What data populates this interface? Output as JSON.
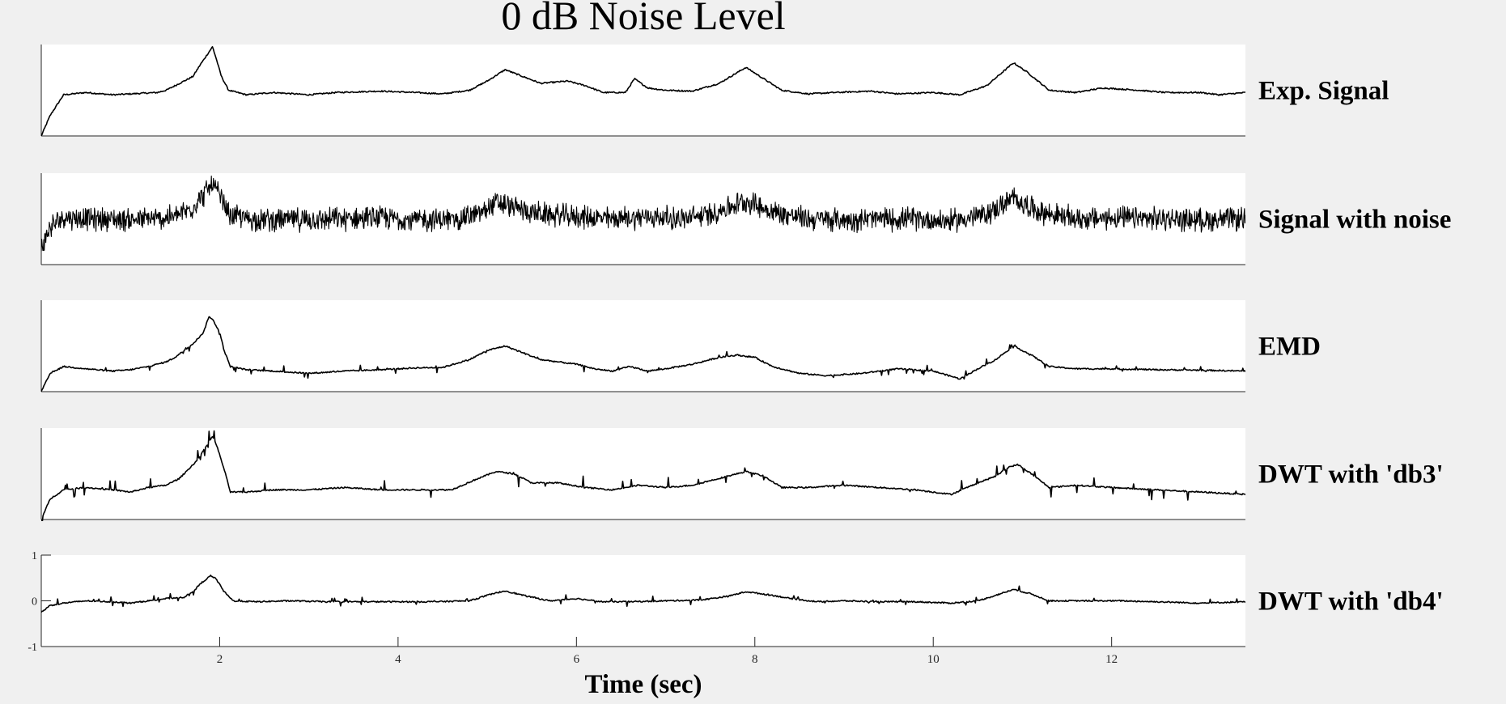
{
  "chart_data": {
    "type": "line",
    "title": "0 dB Noise Level",
    "xlabel": "Time (sec)",
    "xlim": [
      0,
      13.5
    ],
    "x_ticks": [
      2,
      4,
      6,
      8,
      10,
      12
    ],
    "x_tick_labels": [
      "2",
      "4",
      "6",
      "8",
      "10",
      "12"
    ],
    "colors": {
      "line": "#000000",
      "axes_bg": "#ffffff",
      "figure_bg": "#f0f0f0"
    },
    "panels": [
      {
        "label": "Exp. Signal",
        "ylim": [
          -1,
          1
        ],
        "noise": 0,
        "spikes": 0,
        "points": [
          [
            0,
            -1
          ],
          [
            0.1,
            -0.55
          ],
          [
            0.25,
            -0.1
          ],
          [
            0.5,
            -0.05
          ],
          [
            0.8,
            -0.1
          ],
          [
            1.0,
            -0.08
          ],
          [
            1.3,
            -0.05
          ],
          [
            1.4,
            0.0
          ],
          [
            1.55,
            0.15
          ],
          [
            1.7,
            0.3
          ],
          [
            1.78,
            0.55
          ],
          [
            1.85,
            0.75
          ],
          [
            1.92,
            0.95
          ],
          [
            1.96,
            0.7
          ],
          [
            2.02,
            0.3
          ],
          [
            2.1,
            0.0
          ],
          [
            2.3,
            -0.1
          ],
          [
            2.6,
            -0.05
          ],
          [
            3.0,
            -0.1
          ],
          [
            3.3,
            -0.05
          ],
          [
            3.8,
            -0.02
          ],
          [
            4.2,
            -0.05
          ],
          [
            4.5,
            -0.08
          ],
          [
            4.8,
            0.0
          ],
          [
            5.0,
            0.2
          ],
          [
            5.2,
            0.45
          ],
          [
            5.4,
            0.3
          ],
          [
            5.6,
            0.15
          ],
          [
            5.9,
            0.2
          ],
          [
            6.1,
            0.1
          ],
          [
            6.3,
            -0.05
          ],
          [
            6.55,
            -0.05
          ],
          [
            6.65,
            0.25
          ],
          [
            6.8,
            0.05
          ],
          [
            7.0,
            0.0
          ],
          [
            7.3,
            -0.02
          ],
          [
            7.6,
            0.15
          ],
          [
            7.9,
            0.5
          ],
          [
            8.1,
            0.25
          ],
          [
            8.3,
            0.0
          ],
          [
            8.6,
            -0.08
          ],
          [
            8.9,
            -0.05
          ],
          [
            9.3,
            -0.02
          ],
          [
            9.6,
            -0.08
          ],
          [
            10.0,
            -0.05
          ],
          [
            10.3,
            -0.1
          ],
          [
            10.6,
            0.1
          ],
          [
            10.9,
            0.6
          ],
          [
            11.05,
            0.4
          ],
          [
            11.3,
            0.0
          ],
          [
            11.6,
            -0.05
          ],
          [
            11.9,
            0.05
          ],
          [
            12.3,
            0.0
          ],
          [
            12.6,
            -0.05
          ],
          [
            13.0,
            -0.05
          ],
          [
            13.2,
            -0.1
          ],
          [
            13.5,
            -0.05
          ]
        ]
      },
      {
        "label": "Signal with noise",
        "ylim": [
          -1,
          1
        ],
        "noise": 0.3,
        "spikes": 0,
        "points": [
          [
            0,
            -0.6
          ],
          [
            0.1,
            -0.2
          ],
          [
            0.25,
            0.05
          ],
          [
            0.5,
            0.0
          ],
          [
            0.8,
            0.0
          ],
          [
            1.0,
            -0.02
          ],
          [
            1.3,
            0.0
          ],
          [
            1.5,
            0.05
          ],
          [
            1.7,
            0.25
          ],
          [
            1.8,
            0.5
          ],
          [
            1.92,
            0.75
          ],
          [
            2.0,
            0.5
          ],
          [
            2.1,
            0.1
          ],
          [
            2.3,
            0.0
          ],
          [
            2.6,
            -0.02
          ],
          [
            3.0,
            -0.02
          ],
          [
            3.4,
            0.0
          ],
          [
            3.8,
            0.02
          ],
          [
            4.2,
            -0.02
          ],
          [
            4.6,
            -0.02
          ],
          [
            4.9,
            0.1
          ],
          [
            5.1,
            0.35
          ],
          [
            5.3,
            0.25
          ],
          [
            5.6,
            0.1
          ],
          [
            6.0,
            0.05
          ],
          [
            6.4,
            0.0
          ],
          [
            6.8,
            0.05
          ],
          [
            7.2,
            0.0
          ],
          [
            7.5,
            0.1
          ],
          [
            7.9,
            0.4
          ],
          [
            8.2,
            0.15
          ],
          [
            8.6,
            0.0
          ],
          [
            9.0,
            -0.02
          ],
          [
            9.4,
            0.0
          ],
          [
            9.8,
            0.0
          ],
          [
            10.2,
            -0.05
          ],
          [
            10.6,
            0.1
          ],
          [
            10.9,
            0.45
          ],
          [
            11.2,
            0.15
          ],
          [
            11.6,
            0.0
          ],
          [
            12.0,
            0.02
          ],
          [
            12.5,
            0.0
          ],
          [
            13.0,
            -0.02
          ],
          [
            13.5,
            0.0
          ]
        ]
      },
      {
        "label": "EMD",
        "ylim": [
          -1,
          1
        ],
        "noise": 0,
        "spikes": 0.06,
        "points": [
          [
            0,
            -1
          ],
          [
            0.1,
            -0.6
          ],
          [
            0.25,
            -0.45
          ],
          [
            0.5,
            -0.5
          ],
          [
            0.8,
            -0.55
          ],
          [
            1.0,
            -0.52
          ],
          [
            1.2,
            -0.45
          ],
          [
            1.4,
            -0.35
          ],
          [
            1.5,
            -0.25
          ],
          [
            1.6,
            -0.1
          ],
          [
            1.7,
            0.05
          ],
          [
            1.75,
            0.15
          ],
          [
            1.82,
            0.3
          ],
          [
            1.88,
            0.65
          ],
          [
            1.93,
            0.55
          ],
          [
            2.0,
            0.3
          ],
          [
            2.05,
            -0.1
          ],
          [
            2.12,
            -0.45
          ],
          [
            2.3,
            -0.52
          ],
          [
            2.6,
            -0.55
          ],
          [
            3.0,
            -0.6
          ],
          [
            3.4,
            -0.55
          ],
          [
            3.8,
            -0.52
          ],
          [
            4.2,
            -0.48
          ],
          [
            4.5,
            -0.47
          ],
          [
            4.8,
            -0.3
          ],
          [
            5.0,
            -0.1
          ],
          [
            5.2,
            0.0
          ],
          [
            5.4,
            -0.15
          ],
          [
            5.6,
            -0.3
          ],
          [
            5.8,
            -0.35
          ],
          [
            6.0,
            -0.4
          ],
          [
            6.2,
            -0.5
          ],
          [
            6.4,
            -0.55
          ],
          [
            6.6,
            -0.45
          ],
          [
            6.8,
            -0.55
          ],
          [
            7.0,
            -0.5
          ],
          [
            7.3,
            -0.4
          ],
          [
            7.6,
            -0.25
          ],
          [
            7.8,
            -0.2
          ],
          [
            8.0,
            -0.25
          ],
          [
            8.2,
            -0.45
          ],
          [
            8.5,
            -0.6
          ],
          [
            8.8,
            -0.65
          ],
          [
            9.2,
            -0.6
          ],
          [
            9.6,
            -0.5
          ],
          [
            10.0,
            -0.55
          ],
          [
            10.3,
            -0.72
          ],
          [
            10.5,
            -0.5
          ],
          [
            10.7,
            -0.3
          ],
          [
            10.9,
            0.0
          ],
          [
            11.1,
            -0.2
          ],
          [
            11.3,
            -0.45
          ],
          [
            11.6,
            -0.5
          ],
          [
            12.0,
            -0.5
          ],
          [
            12.5,
            -0.52
          ],
          [
            13.0,
            -0.53
          ],
          [
            13.5,
            -0.55
          ]
        ]
      },
      {
        "label": "DWT with 'db3'",
        "ylim": [
          -1,
          1
        ],
        "noise": 0,
        "spikes": 0.12,
        "points": [
          [
            0,
            -1
          ],
          [
            0.1,
            -0.55
          ],
          [
            0.25,
            -0.35
          ],
          [
            0.5,
            -0.3
          ],
          [
            0.8,
            -0.35
          ],
          [
            1.0,
            -0.4
          ],
          [
            1.2,
            -0.3
          ],
          [
            1.4,
            -0.25
          ],
          [
            1.55,
            -0.1
          ],
          [
            1.65,
            0.1
          ],
          [
            1.75,
            0.3
          ],
          [
            1.85,
            0.6
          ],
          [
            1.92,
            0.82
          ],
          [
            1.97,
            0.6
          ],
          [
            2.05,
            0.1
          ],
          [
            2.12,
            -0.4
          ],
          [
            2.3,
            -0.4
          ],
          [
            2.6,
            -0.35
          ],
          [
            3.0,
            -0.35
          ],
          [
            3.4,
            -0.3
          ],
          [
            3.8,
            -0.35
          ],
          [
            4.2,
            -0.35
          ],
          [
            4.6,
            -0.35
          ],
          [
            4.9,
            -0.1
          ],
          [
            5.1,
            0.05
          ],
          [
            5.3,
            0.0
          ],
          [
            5.5,
            -0.2
          ],
          [
            5.8,
            -0.2
          ],
          [
            6.1,
            -0.3
          ],
          [
            6.4,
            -0.35
          ],
          [
            6.7,
            -0.25
          ],
          [
            7.0,
            -0.3
          ],
          [
            7.3,
            -0.25
          ],
          [
            7.6,
            -0.1
          ],
          [
            7.9,
            0.05
          ],
          [
            8.1,
            -0.05
          ],
          [
            8.3,
            -0.3
          ],
          [
            8.6,
            -0.3
          ],
          [
            9.0,
            -0.25
          ],
          [
            9.4,
            -0.3
          ],
          [
            9.8,
            -0.35
          ],
          [
            10.2,
            -0.45
          ],
          [
            10.5,
            -0.2
          ],
          [
            10.7,
            -0.05
          ],
          [
            10.85,
            0.15
          ],
          [
            10.95,
            0.2
          ],
          [
            11.1,
            0.0
          ],
          [
            11.3,
            -0.3
          ],
          [
            11.6,
            -0.25
          ],
          [
            12.0,
            -0.3
          ],
          [
            12.5,
            -0.35
          ],
          [
            13.0,
            -0.4
          ],
          [
            13.5,
            -0.45
          ]
        ]
      },
      {
        "label": "DWT with 'db4'",
        "ylim": [
          -1,
          1
        ],
        "y_ticks": [
          -1,
          0,
          1
        ],
        "y_tick_labels": [
          "-1",
          "0",
          "1"
        ],
        "noise": 0,
        "spikes": 0.05,
        "points": [
          [
            0,
            -0.25
          ],
          [
            0.1,
            -0.1
          ],
          [
            0.25,
            -0.05
          ],
          [
            0.5,
            0.0
          ],
          [
            0.8,
            -0.02
          ],
          [
            1.0,
            -0.05
          ],
          [
            1.2,
            0.0
          ],
          [
            1.4,
            0.05
          ],
          [
            1.6,
            0.08
          ],
          [
            1.7,
            0.2
          ],
          [
            1.8,
            0.4
          ],
          [
            1.9,
            0.55
          ],
          [
            1.96,
            0.48
          ],
          [
            2.05,
            0.2
          ],
          [
            2.15,
            0.0
          ],
          [
            2.4,
            -0.02
          ],
          [
            2.8,
            0.0
          ],
          [
            3.2,
            -0.02
          ],
          [
            3.6,
            -0.02
          ],
          [
            4.0,
            -0.02
          ],
          [
            4.4,
            -0.02
          ],
          [
            4.8,
            0.0
          ],
          [
            5.0,
            0.12
          ],
          [
            5.2,
            0.22
          ],
          [
            5.4,
            0.12
          ],
          [
            5.7,
            0.0
          ],
          [
            6.0,
            0.05
          ],
          [
            6.3,
            -0.02
          ],
          [
            6.6,
            -0.02
          ],
          [
            7.0,
            0.0
          ],
          [
            7.4,
            0.02
          ],
          [
            7.7,
            0.1
          ],
          [
            7.9,
            0.2
          ],
          [
            8.2,
            0.12
          ],
          [
            8.4,
            0.05
          ],
          [
            8.7,
            -0.02
          ],
          [
            9.0,
            0.0
          ],
          [
            9.4,
            -0.02
          ],
          [
            9.8,
            -0.02
          ],
          [
            10.2,
            -0.05
          ],
          [
            10.5,
            0.0
          ],
          [
            10.7,
            0.12
          ],
          [
            10.9,
            0.25
          ],
          [
            11.1,
            0.15
          ],
          [
            11.3,
            0.0
          ],
          [
            11.7,
            0.0
          ],
          [
            12.1,
            0.0
          ],
          [
            12.5,
            -0.02
          ],
          [
            13.0,
            -0.05
          ],
          [
            13.5,
            -0.02
          ]
        ]
      }
    ]
  }
}
